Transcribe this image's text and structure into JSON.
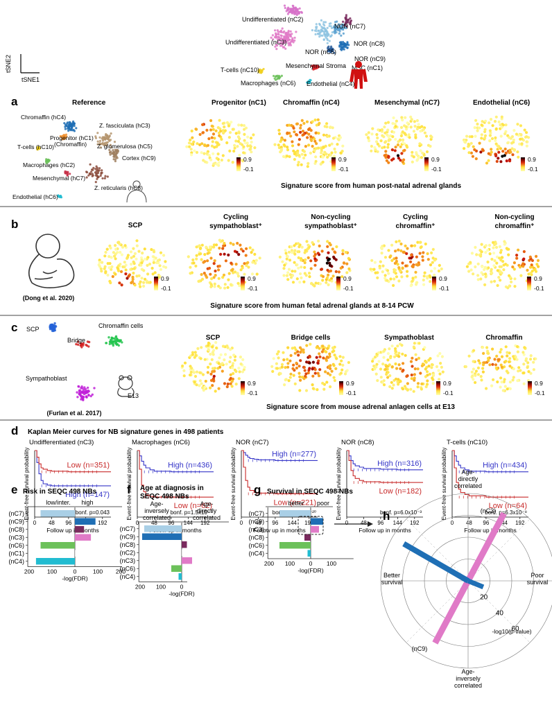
{
  "top_tsne": {
    "axis_x": "tSNE1",
    "axis_y": "tSNE2",
    "labels": [
      "Undifferentiated (nC2)",
      "Undifferentiated (nC3)",
      "NOR (nC7)",
      "NOR (nC8)",
      "NOR (nC5)",
      "NOR (nC9)",
      "T-cells (nC10)",
      "Mesenchymal Stroma",
      "MSC (nC1)",
      "Macrophages (nC6)",
      "Endothelial (nC4)"
    ]
  },
  "panel_a": {
    "letter": "a",
    "reference_title": "Reference",
    "reference_labels": [
      "Chromaffin (hC4)",
      "Progenitor (hC1)",
      "(Chromaffin)",
      "Z. fasciculata (hC3)",
      "Z. glomerulosa (hC5)",
      "T-cells (hC10)",
      "Cortex (hC9)",
      "Macrophages (hC2)",
      "Mesenchymal (hC7)",
      "Z. reticularis (hC8)",
      "Endothelial (hC6)"
    ],
    "maps": [
      "Progenitor (nC1)",
      "Chromaffin (nC4)",
      "Mesenchymal (nC7)",
      "Endothelial (nC6)"
    ],
    "scale_max": "0.9",
    "scale_min": "-0.1",
    "caption": "Signature score from human post-natal adrenal glands"
  },
  "panel_b": {
    "letter": "b",
    "source": "(Dong et al. 2020)",
    "maps": [
      [
        "SCP"
      ],
      [
        "Cycling",
        "sympathoblast⁺"
      ],
      [
        "Non-cycling",
        "sympathoblast⁺"
      ],
      [
        "Cycling",
        "chromaffin⁺"
      ],
      [
        "Non-cycling",
        "chromaffin⁺"
      ]
    ],
    "caption": "Signature score from human fetal adrenal glands at 8-14 PCW"
  },
  "panel_c": {
    "letter": "c",
    "labels": [
      "SCP",
      "Chromaffin cells",
      "Bridge",
      "Sympathoblast",
      "E13"
    ],
    "source": "(Furlan et al. 2017)",
    "maps": [
      "SCP",
      "Bridge cells",
      "Sympathoblast",
      "Chromaffin"
    ],
    "caption": "Signature score from mouse adrenal anlagen cells at E13"
  },
  "panel_d": {
    "letter": "d",
    "title": "Kaplan Meier curves for NB signature genes in 498 patients",
    "ylabel": "Event-free survival probability",
    "xlabel": "Follow up in months",
    "xticks": [
      "0",
      "48",
      "96",
      "144",
      "192"
    ],
    "plots": [
      {
        "title": "Undifferentiated (nC3)",
        "high": "High (n=147)",
        "low": "Low (n=351)",
        "p": "bonf. p=0.043"
      },
      {
        "title": "Macrophages (nC6)",
        "high": "High (n=436)",
        "low": "Low (n=62)",
        "p": "bonf. p=1.5x10⁻⁷"
      },
      {
        "title": "NOR (nC7)",
        "high": "High (n=277)",
        "low": "Low (n=221)",
        "p": "bonf. p=2.3x10⁻²⁰"
      },
      {
        "title": "NOR (nC8)",
        "high": "High (n=316)",
        "low": "Low (n=182)",
        "p": "bonf. p=6.0x10⁻³"
      },
      {
        "title": "T-cells (nC10)",
        "high": "High (n=434)",
        "low": "Low (n=64)",
        "p": "bonf. p=6.3x10⁻⁸"
      }
    ]
  },
  "chart_data": [
    {
      "type": "line",
      "title": "Undifferentiated (nC3)",
      "xlabel": "Follow up in months",
      "ylabel": "Event-free survival probability",
      "xlim": [
        0,
        216
      ],
      "ylim": [
        0,
        1
      ],
      "x": [
        0,
        6,
        12,
        18,
        24,
        36,
        48,
        96,
        144,
        192
      ],
      "series": [
        {
          "name": "High (n=147)",
          "values": [
            1,
            0.82,
            0.65,
            0.55,
            0.5,
            0.48,
            0.47,
            0.47,
            0.47,
            0.47
          ]
        },
        {
          "name": "Low (n=351)",
          "values": [
            1,
            0.9,
            0.8,
            0.74,
            0.72,
            0.7,
            0.69,
            0.68,
            0.68,
            0.68
          ]
        }
      ]
    },
    {
      "type": "line",
      "title": "Macrophages (nC6)",
      "xlabel": "Follow up in months",
      "ylabel": "Event-free survival probability",
      "xlim": [
        0,
        216
      ],
      "ylim": [
        0,
        1
      ],
      "x": [
        0,
        6,
        12,
        18,
        24,
        36,
        48,
        96,
        144,
        192
      ],
      "series": [
        {
          "name": "High (n=436)",
          "values": [
            1,
            0.92,
            0.84,
            0.78,
            0.74,
            0.71,
            0.69,
            0.68,
            0.68,
            0.68
          ]
        },
        {
          "name": "Low (n=62)",
          "values": [
            1,
            0.72,
            0.48,
            0.38,
            0.33,
            0.31,
            0.3,
            0.3,
            0.3,
            0.3
          ]
        }
      ]
    },
    {
      "type": "line",
      "title": "NOR (nC7)",
      "xlabel": "Follow up in months",
      "ylabel": "Event-free survival probability",
      "xlim": [
        0,
        216
      ],
      "ylim": [
        0,
        1
      ],
      "x": [
        0,
        6,
        12,
        18,
        24,
        36,
        48,
        96,
        144,
        192
      ],
      "series": [
        {
          "name": "High (n=277)",
          "values": [
            1,
            0.97,
            0.93,
            0.9,
            0.88,
            0.87,
            0.86,
            0.85,
            0.85,
            0.85
          ]
        },
        {
          "name": "Low (n=221)",
          "values": [
            1,
            0.75,
            0.55,
            0.45,
            0.4,
            0.37,
            0.36,
            0.35,
            0.35,
            0.35
          ]
        }
      ]
    },
    {
      "type": "line",
      "title": "NOR (nC8)",
      "xlabel": "Follow up in months",
      "ylabel": "Event-free survival probability",
      "xlim": [
        0,
        216
      ],
      "ylim": [
        0,
        1
      ],
      "x": [
        0,
        6,
        12,
        18,
        24,
        36,
        48,
        96,
        144,
        192
      ],
      "series": [
        {
          "name": "High (n=316)",
          "values": [
            1,
            0.92,
            0.85,
            0.8,
            0.77,
            0.75,
            0.73,
            0.72,
            0.71,
            0.71
          ]
        },
        {
          "name": "Low (n=182)",
          "values": [
            1,
            0.85,
            0.7,
            0.62,
            0.58,
            0.55,
            0.53,
            0.52,
            0.52,
            0.52
          ]
        }
      ]
    },
    {
      "type": "line",
      "title": "T-cells (nC10)",
      "xlabel": "Follow up in months",
      "ylabel": "Event-free survival probability",
      "xlim": [
        0,
        216
      ],
      "ylim": [
        0,
        1
      ],
      "x": [
        0,
        6,
        12,
        18,
        24,
        36,
        48,
        96,
        144,
        192
      ],
      "series": [
        {
          "name": "High (n=434)",
          "values": [
            1,
            0.92,
            0.84,
            0.78,
            0.74,
            0.71,
            0.69,
            0.68,
            0.68,
            0.68
          ]
        },
        {
          "name": "Low (n=64)",
          "values": [
            1,
            0.74,
            0.52,
            0.42,
            0.37,
            0.34,
            0.32,
            0.3,
            0.3,
            0.3
          ]
        }
      ]
    },
    {
      "type": "bar",
      "title": "Risk in SEQC 498 NBs",
      "xlabel": "-log(FDR)",
      "xticks": [
        "200",
        "100",
        "0",
        "100",
        "200"
      ],
      "sides": [
        "low/inter.",
        "high"
      ],
      "categories": [
        "(nC7)",
        "(nC9)",
        "(nC8)",
        "(nC3)",
        "(nC6)",
        "(nC1)",
        "(nC4)"
      ],
      "values": [
        -150,
        90,
        40,
        70,
        -150,
        0,
        -170
      ],
      "colors": [
        "#a9cfe6",
        "#1f6fb5",
        "#7a2b5e",
        "#e07ac7",
        "#6cc15a",
        "#c8c8c8",
        "#22bcd1"
      ]
    },
    {
      "type": "bar",
      "title": "Age at diagnosis in SEQC 498 NBs",
      "xlabel": "-log(FDR)",
      "xticks": [
        "200",
        "100",
        "0"
      ],
      "sides": [
        "Age-inversely correlated",
        "Age-directly correlated"
      ],
      "categories": [
        "(nC7)",
        "(nC9)",
        "(nC8)",
        "(nC2)",
        "(nC3)",
        "(nC6)",
        "(nC4)"
      ],
      "values": [
        -180,
        -190,
        25,
        0,
        50,
        -50,
        -15
      ],
      "colors": [
        "#a9cfe6",
        "#1f6fb5",
        "#7a2b5e",
        "#c8c8c8",
        "#e07ac7",
        "#6cc15a",
        "#22bcd1"
      ]
    },
    {
      "type": "bar",
      "title": "Survival in SEQC 498 NBs",
      "xlabel": "-log(FDR)",
      "xticks": [
        "200",
        "100",
        "0",
        "100"
      ],
      "sides": [
        "better",
        "poor"
      ],
      "categories": [
        "(nC7)",
        "(nC9)",
        "(nC3)",
        "(nC8)",
        "(nC6)",
        "(nC4)"
      ],
      "values": [
        -150,
        60,
        40,
        -30,
        -150,
        -15
      ],
      "colors": [
        "#a9cfe6",
        "#1f6fb5",
        "#e07ac7",
        "#7a2b5e",
        "#6cc15a",
        "#22bcd1"
      ]
    },
    {
      "type": "polar",
      "title": "h",
      "ticks": [
        "20",
        "40",
        "60"
      ],
      "axis_label": "-log10(p-value)",
      "directions": [
        "Age-directly correlated",
        "Age-inversely correlated",
        "Better survival",
        "Poor survival"
      ],
      "series": [
        {
          "name": "(nC3)",
          "value": 70,
          "color": "#e07ac7"
        },
        {
          "name": "(nC9)",
          "value": 68,
          "color": "#1f6fb5"
        }
      ]
    }
  ],
  "panel_e": {
    "letter": "e",
    "title": "Risk in SEQC 498 NBs"
  },
  "panel_f": {
    "letter": "f",
    "title_line1": "Age at diagnosis in",
    "title_line2": "SEQC 498 NBs"
  },
  "panel_g": {
    "letter": "g",
    "title": "Survival in SEQC 498 NBs"
  },
  "panel_h": {
    "letter": "h",
    "top1": "Age-",
    "top2": "directly",
    "top3": "correlated",
    "bottom1": "Age-",
    "bottom2": "inversely",
    "bottom3": "correlated",
    "left1": "Better",
    "left2": "survival",
    "right1": "Poor",
    "right2": "survival",
    "axis_label": "-log10(p-value)",
    "label_nc3": "(nC3)",
    "label_nc9": "(nC9)"
  }
}
